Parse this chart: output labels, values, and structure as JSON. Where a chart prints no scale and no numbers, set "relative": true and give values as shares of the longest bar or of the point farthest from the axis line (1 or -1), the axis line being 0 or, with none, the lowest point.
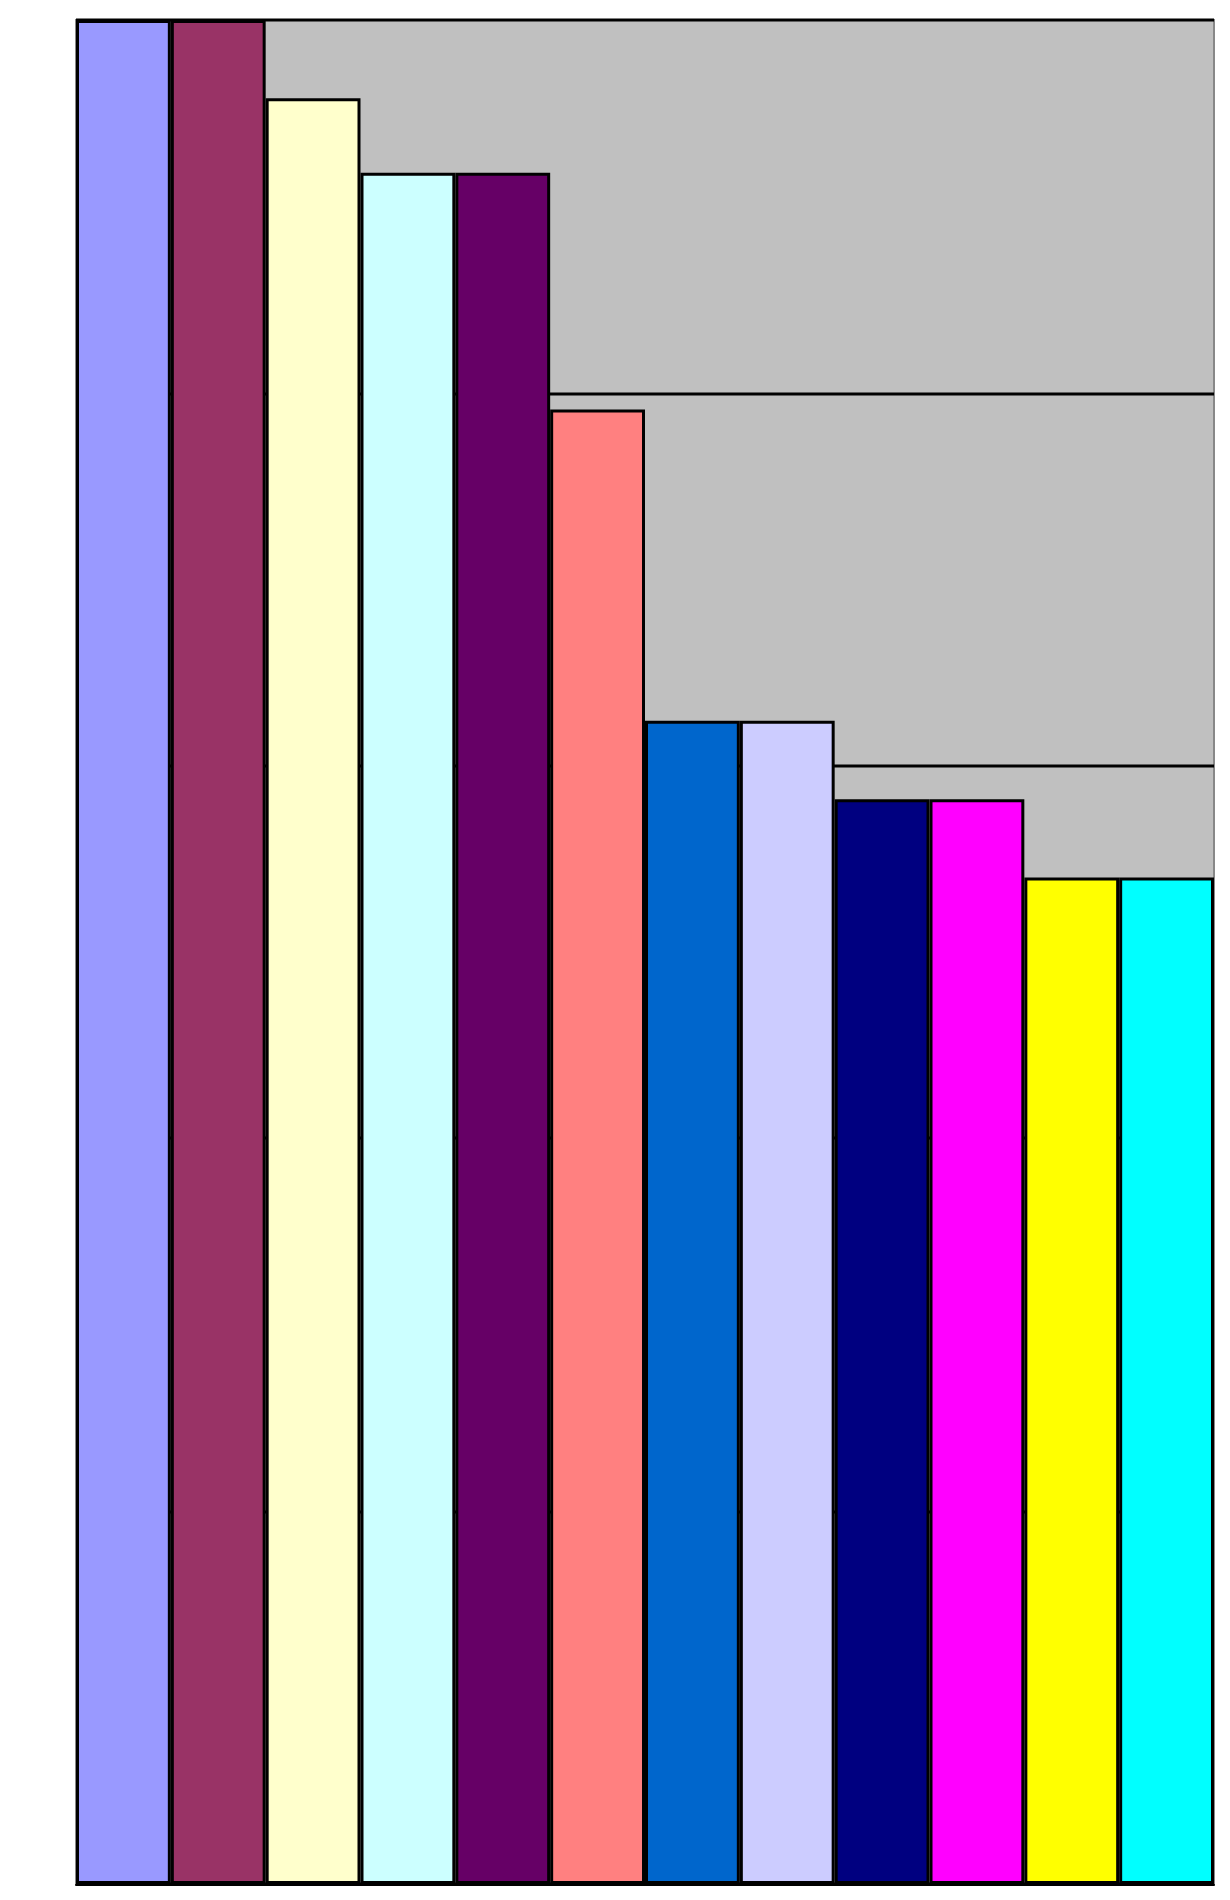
{
  "chart_data": {
    "type": "bar",
    "relative": true,
    "grid": "y",
    "categories": [
      null,
      null,
      null,
      null,
      null,
      null,
      null,
      null,
      null,
      null,
      null,
      null
    ],
    "values": [
      1,
      1,
      0.958,
      0.918,
      0.918,
      0.791,
      0.624,
      0.624,
      0.582,
      0.582,
      0.54,
      0.54
    ],
    "colors": [
      "#9999ff",
      "#993366",
      "#ffffcc",
      "#ccffff",
      "#660066",
      "#ff8080",
      "#0066cc",
      "#ccccff",
      "#000080",
      "#ff00ff",
      "#ffff00",
      "#00ffff"
    ]
  }
}
